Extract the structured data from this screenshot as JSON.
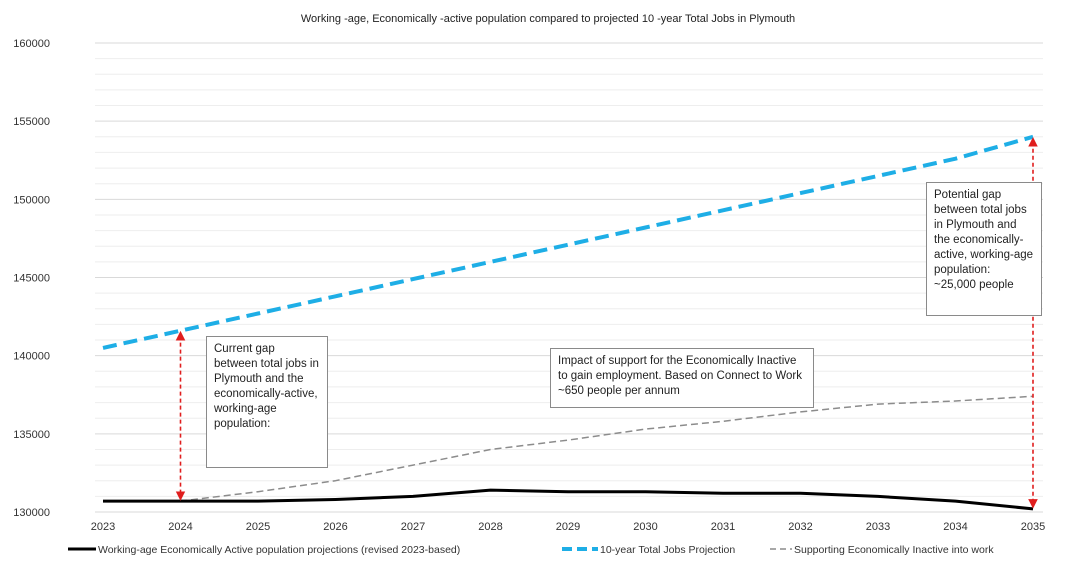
{
  "chart_data": {
    "type": "line",
    "title": "Working -age, Economically  -active population compared to projected 10    -year Total Jobs in Plymouth",
    "x": [
      "2023",
      "2024",
      "2025",
      "2026",
      "2027",
      "2028",
      "2029",
      "2030",
      "2031",
      "2032",
      "2033",
      "2034",
      "2035"
    ],
    "y_ticks": [
      "130000",
      "135000",
      "140000",
      "145000",
      "150000",
      "155000",
      "160000"
    ],
    "ylim": [
      130000,
      160000
    ],
    "grid": "horizontal",
    "legend_position": "bottom",
    "series": [
      {
        "name": "Working-age Economically Active population projections (revised 2023-based)",
        "color": "#000000",
        "style": "solid",
        "values": [
          130700,
          130700,
          130700,
          130800,
          131000,
          131400,
          131300,
          131300,
          131200,
          131200,
          131000,
          130700,
          130200
        ]
      },
      {
        "name": "10-year Total Jobs Projection",
        "color": "#1eaee6",
        "style": "dashed",
        "values": [
          140500,
          141600,
          142700,
          143800,
          144900,
          146000,
          147100,
          148200,
          149300,
          150400,
          151500,
          152600,
          154000
        ]
      },
      {
        "name": "Supporting Economically Inactive into work",
        "color": "#8c8c8c",
        "style": "dashed-thin",
        "values": [
          130700,
          130700,
          131300,
          132000,
          133000,
          134000,
          134600,
          135300,
          135800,
          136400,
          136900,
          137100,
          137400
        ]
      }
    ],
    "annotations": {
      "current_gap": "Current gap between total jobs in Plymouth and the economically-active, working-age population:",
      "impact": "Impact of support for the Economically Inactive to gain employment. Based on Connect to Work ~650 people per annum",
      "potential_gap": "Potential gap between total jobs in Plymouth and the economically-active, working-age population: ~25,000 people"
    }
  }
}
